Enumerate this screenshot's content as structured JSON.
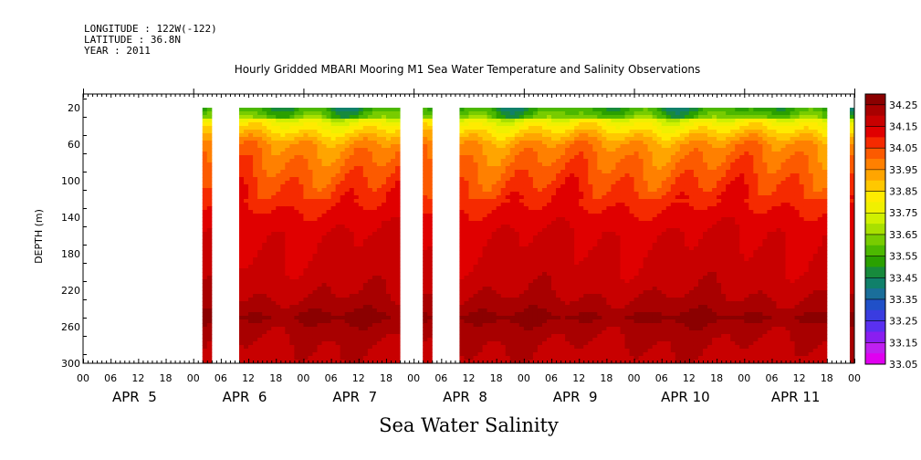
{
  "header": {
    "longitude": "LONGITUDE : 122W(-122)",
    "latitude": "LATITUDE : 36.8N",
    "year": "YEAR : 2011",
    "title": "Hourly Gridded MBARI Mooring M1 Sea Water Temperature and Salinity Observations"
  },
  "variable_title": "Sea Water Salinity",
  "chart_data": {
    "type": "heatmap",
    "title": "Hourly Gridded MBARI Mooring M1 Sea Water Temperature and Salinity Observations",
    "xlabel": "",
    "ylabel": "DEPTH (m)",
    "variable": "Sea Water Salinity",
    "x_range_hours": [
      0,
      168
    ],
    "x_hour_ticks": [
      "00",
      "06",
      "12",
      "18",
      "00",
      "06",
      "12",
      "18",
      "00",
      "06",
      "12",
      "18",
      "00",
      "06",
      "12",
      "18",
      "00",
      "06",
      "12",
      "18",
      "00",
      "06",
      "12",
      "18",
      "00",
      "06",
      "12",
      "18",
      "00"
    ],
    "x_day_labels": [
      "APR  5",
      "APR  6",
      "APR  7",
      "APR  8",
      "APR  9",
      "APR 10",
      "APR 11"
    ],
    "y_ticks": [
      20,
      60,
      100,
      140,
      180,
      220,
      260,
      300
    ],
    "ylim": [
      300,
      5
    ],
    "data_segments_hours": [
      [
        26,
        28
      ],
      [
        34,
        69
      ],
      [
        74,
        76
      ],
      [
        82,
        162
      ],
      [
        167,
        168
      ]
    ],
    "colorbar": {
      "labels": [
        "34.25",
        "34.15",
        "34.05",
        "33.95",
        "33.85",
        "33.75",
        "33.65",
        "33.55",
        "33.45",
        "33.35",
        "33.25",
        "33.15",
        "33.05"
      ],
      "colors": [
        "#8b0000",
        "#a80000",
        "#c80000",
        "#e00000",
        "#f52a00",
        "#fc5a00",
        "#ff8000",
        "#ffa500",
        "#ffc800",
        "#ffeb00",
        "#f0f000",
        "#d0f000",
        "#a8e000",
        "#78cc00",
        "#4cb800",
        "#2aa000",
        "#178a3c",
        "#10806a",
        "#1a6e9a",
        "#2050c8",
        "#3a3ce0",
        "#5a30f0",
        "#8a1ef0",
        "#c020f0",
        "#e000f0"
      ]
    },
    "depth_profile": [
      {
        "depth": 20,
        "value": 33.62
      },
      {
        "depth": 40,
        "value": 33.82
      },
      {
        "depth": 60,
        "value": 33.97
      },
      {
        "depth": 80,
        "value": 34.02
      },
      {
        "depth": 100,
        "value": 34.06
      },
      {
        "depth": 120,
        "value": 34.1
      },
      {
        "depth": 140,
        "value": 34.14
      },
      {
        "depth": 160,
        "value": 34.17
      },
      {
        "depth": 180,
        "value": 34.18
      },
      {
        "depth": 200,
        "value": 34.19
      },
      {
        "depth": 220,
        "value": 34.21
      },
      {
        "depth": 240,
        "value": 34.25
      },
      {
        "depth": 250,
        "value": 34.29
      },
      {
        "depth": 260,
        "value": 34.25
      },
      {
        "depth": 280,
        "value": 34.22
      },
      {
        "depth": 300,
        "value": 34.2
      }
    ]
  }
}
